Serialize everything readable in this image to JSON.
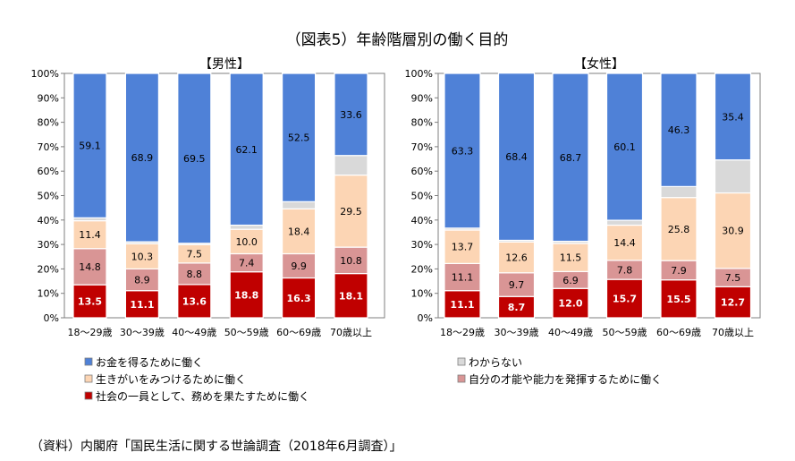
{
  "figure": {
    "title": "（図表5）年齢階層別の働く目的",
    "source": "（資料）内閣府「国民生活に関する世論調査（2018年6月調査）」"
  },
  "legend": {
    "placement": "bottom",
    "items": [
      {
        "series": "money",
        "label": "お金を得るために働く"
      },
      {
        "series": "unknown",
        "label": "わからない"
      },
      {
        "series": "purpose",
        "label": "生きがいをみつけるために働く"
      },
      {
        "series": "ability",
        "label": "自分の才能や能力を発揮するために働く"
      },
      {
        "series": "society",
        "label": "社会の一員として、務めを果たすために働く"
      }
    ]
  },
  "colors": {
    "society": "#c00000",
    "ability": "#d99595",
    "purpose": "#fcd5b4",
    "unknown": "#d9d9d9",
    "money": "#4f81d7"
  },
  "chart_data": [
    {
      "type": "bar",
      "stacked": true,
      "title": "【男性】",
      "categories": [
        "18～29歳",
        "30～39歳",
        "40～49歳",
        "50～59歳",
        "60～69歳",
        "70歳以上"
      ],
      "ylim": [
        0,
        100
      ],
      "yticks": [
        0,
        10,
        20,
        30,
        40,
        50,
        60,
        70,
        80,
        90,
        100
      ],
      "ytick_labels": [
        "0%",
        "10%",
        "20%",
        "30%",
        "40%",
        "50%",
        "60%",
        "70%",
        "80%",
        "90%",
        "100%"
      ],
      "grid": false,
      "series": [
        {
          "key": "society",
          "name": "社会の一員として、務めを果たすために働く",
          "values": [
            13.5,
            11.1,
            13.6,
            18.8,
            16.3,
            18.1
          ]
        },
        {
          "key": "ability",
          "name": "自分の才能や能力を発揮するために働く",
          "values": [
            14.8,
            8.9,
            8.8,
            7.4,
            9.9,
            10.8
          ]
        },
        {
          "key": "purpose",
          "name": "生きがいをみつけるために働く",
          "values": [
            11.4,
            10.3,
            7.5,
            10.0,
            18.4,
            29.5
          ]
        },
        {
          "key": "unknown",
          "name": "わからない",
          "values": [
            1.2,
            0.8,
            0.6,
            1.7,
            2.9,
            8.0
          ]
        },
        {
          "key": "money",
          "name": "お金を得るために働く",
          "values": [
            59.1,
            68.9,
            69.5,
            62.1,
            52.5,
            33.6
          ]
        }
      ]
    },
    {
      "type": "bar",
      "stacked": true,
      "title": "【女性】",
      "categories": [
        "18～29歳",
        "30～39歳",
        "40～49歳",
        "50～59歳",
        "60～69歳",
        "70歳以上"
      ],
      "ylim": [
        0,
        100
      ],
      "yticks": [
        0,
        10,
        20,
        30,
        40,
        50,
        60,
        70,
        80,
        90,
        100
      ],
      "ytick_labels": [
        "0%",
        "10%",
        "20%",
        "30%",
        "40%",
        "50%",
        "60%",
        "70%",
        "80%",
        "90%",
        "100%"
      ],
      "grid": false,
      "series": [
        {
          "key": "society",
          "name": "社会の一員として、務めを果たすために働く",
          "values": [
            11.1,
            8.7,
            12.0,
            15.7,
            15.5,
            12.7
          ]
        },
        {
          "key": "ability",
          "name": "自分の才能や能力を発揮するために働く",
          "values": [
            11.1,
            9.7,
            6.9,
            7.8,
            7.9,
            7.5
          ]
        },
        {
          "key": "purpose",
          "name": "生きがいをみつけるために働く",
          "values": [
            13.7,
            12.6,
            11.5,
            14.4,
            25.8,
            30.9
          ]
        },
        {
          "key": "unknown",
          "name": "わからない",
          "values": [
            0.8,
            0.7,
            0.9,
            2.0,
            4.5,
            13.5
          ]
        },
        {
          "key": "money",
          "name": "お金を得るために働く",
          "values": [
            63.3,
            68.4,
            68.7,
            60.1,
            46.3,
            35.4
          ]
        }
      ]
    }
  ]
}
